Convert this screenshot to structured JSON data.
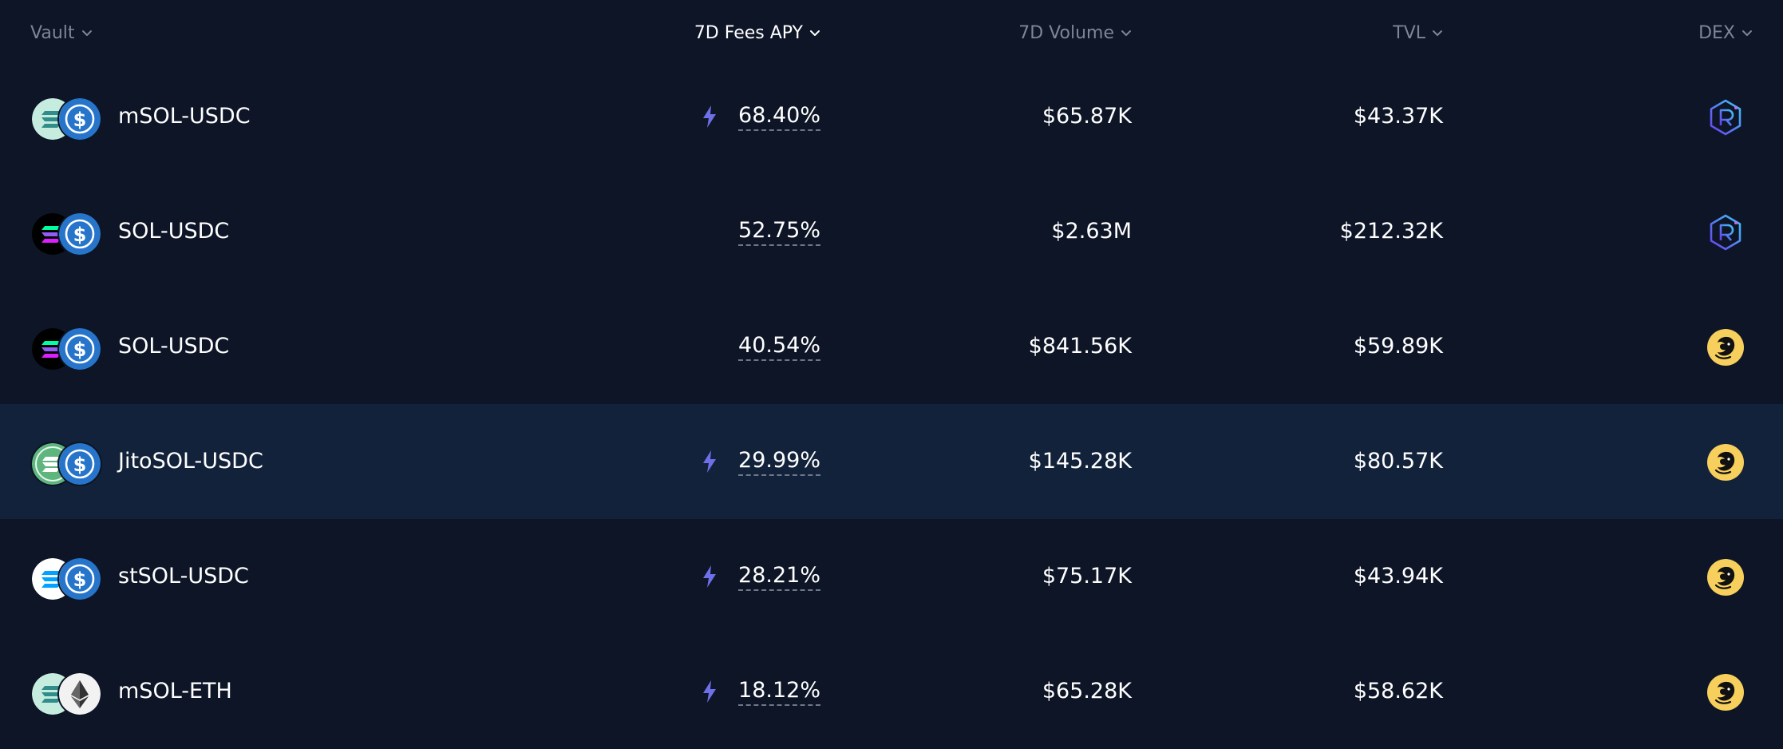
{
  "columns": {
    "vault": "Vault",
    "apy": "7D Fees APY",
    "volume": "7D Volume",
    "tvl": "TVL",
    "dex": "DEX"
  },
  "active_sort_column": "apy",
  "colors": {
    "background": "#0d1527",
    "row_highlight": "#13223b",
    "header_text": "#7d8697",
    "bolt": "#6f6fe8",
    "raydium": "#5a5cf2",
    "orca": "#f7cf5c",
    "usdc": "#2775ca"
  },
  "rows": [
    {
      "name": "mSOL-USDC",
      "apy": "68.40%",
      "boosted": true,
      "volume": "$65.87K",
      "tvl": "$43.37K",
      "token_a": "msol-icon",
      "token_b": "usdc-icon",
      "dex": "raydium-icon"
    },
    {
      "name": "SOL-USDC",
      "apy": "52.75%",
      "boosted": false,
      "volume": "$2.63M",
      "tvl": "$212.32K",
      "token_a": "sol-icon",
      "token_b": "usdc-icon",
      "dex": "raydium-icon"
    },
    {
      "name": "SOL-USDC",
      "apy": "40.54%",
      "boosted": false,
      "volume": "$841.56K",
      "tvl": "$59.89K",
      "token_a": "sol-icon",
      "token_b": "usdc-icon",
      "dex": "orca-icon"
    },
    {
      "name": "JitoSOL-USDC",
      "apy": "29.99%",
      "boosted": true,
      "volume": "$145.28K",
      "tvl": "$80.57K",
      "token_a": "jitosol-icon",
      "token_b": "usdc-icon",
      "dex": "orca-icon"
    },
    {
      "name": "stSOL-USDC",
      "apy": "28.21%",
      "boosted": true,
      "volume": "$75.17K",
      "tvl": "$43.94K",
      "token_a": "stsol-icon",
      "token_b": "usdc-icon",
      "dex": "orca-icon"
    },
    {
      "name": "mSOL-ETH",
      "apy": "18.12%",
      "boosted": true,
      "volume": "$65.28K",
      "tvl": "$58.62K",
      "token_a": "msol-icon",
      "token_b": "eth-icon",
      "dex": "orca-icon"
    }
  ]
}
